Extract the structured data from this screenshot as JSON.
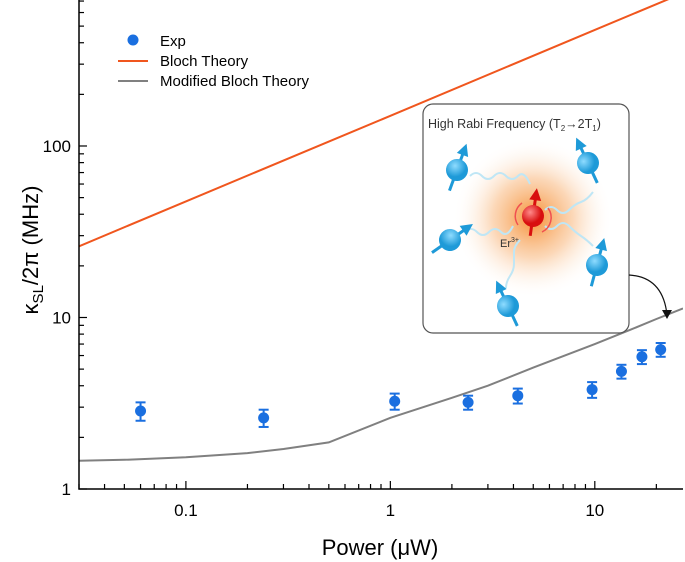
{
  "chart_data": {
    "type": "scatter",
    "xlabel": "Power (μW)",
    "ylabel": "κSL/2π (MHz)",
    "ylabel_main": "κ",
    "ylabel_sub": "SL",
    "ylabel_rest": "/2π (MHz)",
    "x_scale": "log",
    "y_scale": "log",
    "xlim": [
      0.03,
      27
    ],
    "ylim": [
      1,
      710
    ],
    "x_ticks": [
      {
        "value": 0.1,
        "label": "0.1"
      },
      {
        "value": 1,
        "label": "1"
      },
      {
        "value": 10,
        "label": "10"
      }
    ],
    "y_ticks": [
      {
        "value": 1,
        "label": "1"
      },
      {
        "value": 10,
        "label": "10"
      },
      {
        "value": 100,
        "label": "100"
      }
    ],
    "grid": false,
    "legend_position": "top-left",
    "series": [
      {
        "name": "Exp",
        "kind": "points",
        "color": "#1a6fe0",
        "x": [
          0.06,
          0.24,
          1.05,
          2.4,
          4.2,
          9.7,
          13.5,
          17,
          21
        ],
        "y": [
          2.85,
          2.6,
          3.25,
          3.2,
          3.5,
          3.8,
          4.85,
          5.9,
          6.5
        ],
        "yerr": [
          0.35,
          0.3,
          0.35,
          0.3,
          0.35,
          0.4,
          0.45,
          0.55,
          0.6
        ]
      },
      {
        "name": "Bloch Theory",
        "kind": "line",
        "color": "#f0561e",
        "x": [
          0.03,
          0.1,
          1,
          10,
          23
        ],
        "y": [
          26,
          47.5,
          150,
          475,
          720
        ]
      },
      {
        "name": "Modified Bloch Theory",
        "kind": "line",
        "color": "#808080",
        "x": [
          0.03,
          0.05,
          0.1,
          0.2,
          0.3,
          0.5,
          1,
          2,
          3,
          5,
          10,
          15,
          20,
          27
        ],
        "y": [
          1.46,
          1.48,
          1.53,
          1.62,
          1.71,
          1.87,
          2.6,
          3.4,
          4.0,
          5.1,
          7.0,
          8.5,
          9.8,
          11.3
        ]
      }
    ],
    "inset": {
      "title": "High Rabi Frequency (T",
      "title_sub1": "2",
      "title_mid": "→2T",
      "title_sub2": "1",
      "title_end": ")",
      "ion_label": "Er",
      "ion_sup": "3+"
    }
  }
}
